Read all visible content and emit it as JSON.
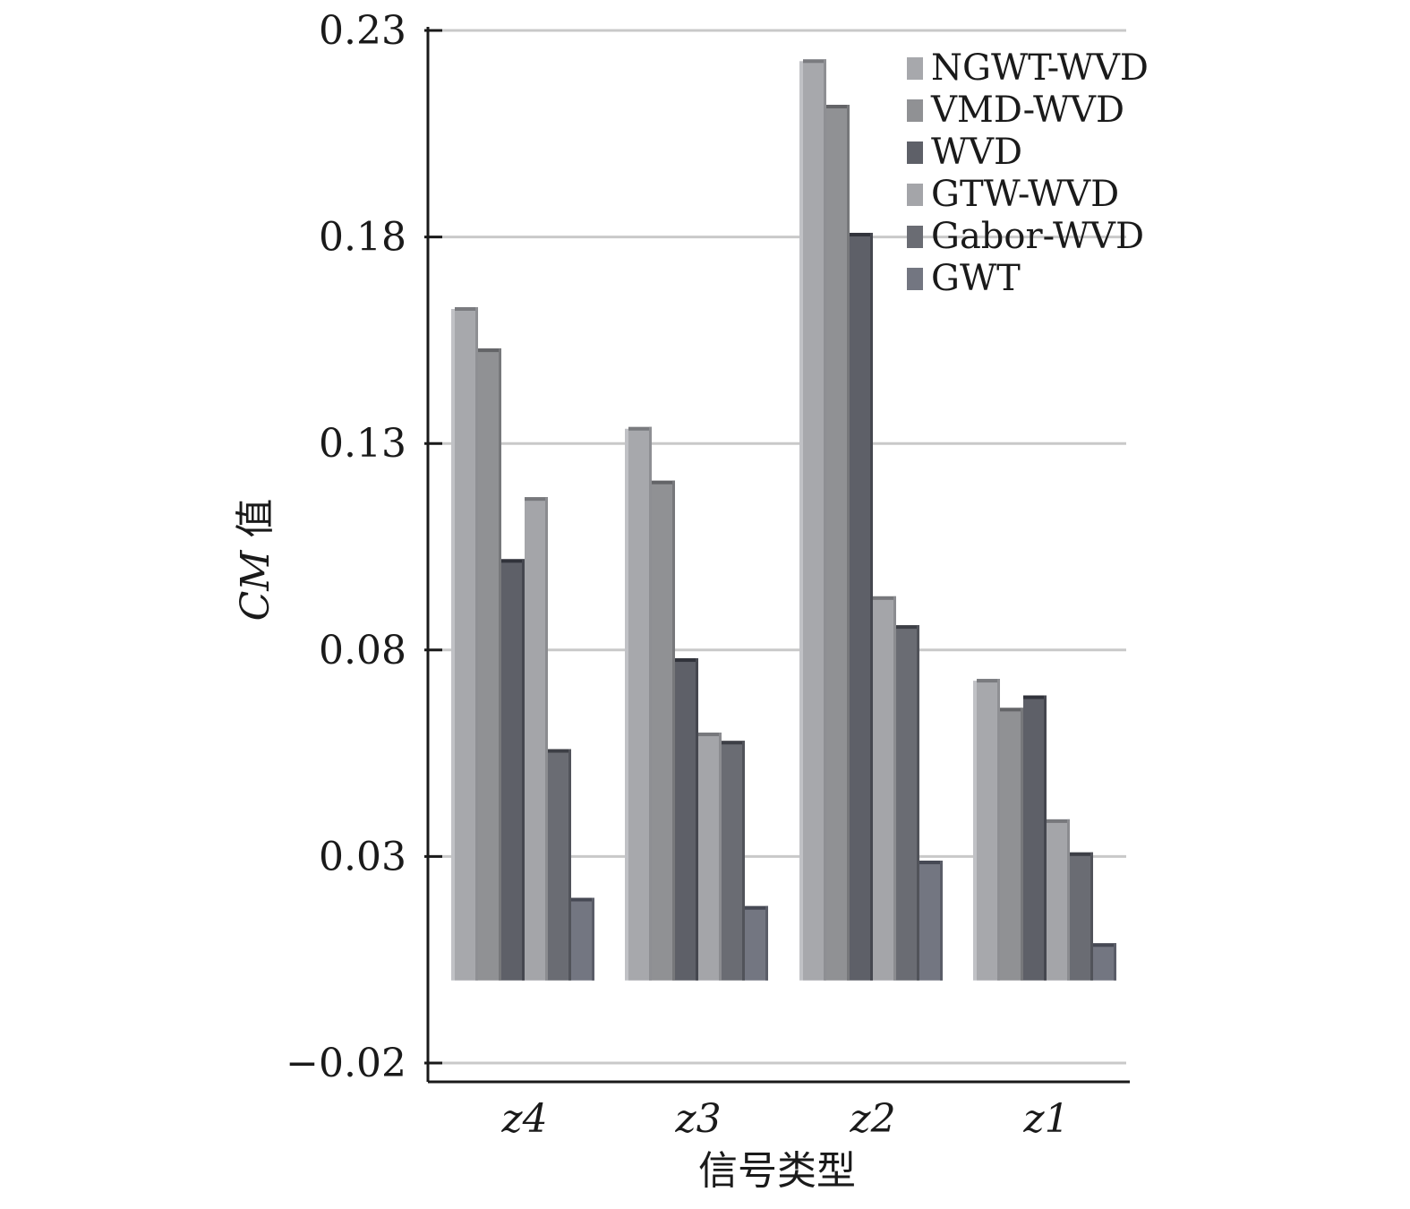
{
  "chart_data": {
    "type": "bar",
    "xlabel": "信号类型",
    "ylabel_prefix": "CM",
    "ylabel_suffix": " 值",
    "categories": [
      "z4",
      "z3",
      "z2",
      "z1"
    ],
    "yticks": [
      "0.23",
      "0.18",
      "0.13",
      "0.08",
      "0.03",
      "−0.02"
    ],
    "ylim": [
      -0.02,
      0.23
    ],
    "baseline": 0.0,
    "grid": true,
    "legend_position": "top-right",
    "series": [
      {
        "name": "NGWT-WVD",
        "color": "#a7a8ac",
        "values": [
          0.163,
          0.134,
          0.223,
          0.073
        ]
      },
      {
        "name": "VMD-WVD",
        "color": "#909194",
        "values": [
          0.153,
          0.121,
          0.212,
          0.066
        ]
      },
      {
        "name": "WVD",
        "color": "#5e6068",
        "values": [
          0.102,
          0.078,
          0.181,
          0.069
        ]
      },
      {
        "name": "GTW-WVD",
        "color": "#a4a5a9",
        "values": [
          0.117,
          0.06,
          0.093,
          0.039
        ]
      },
      {
        "name": "Gabor-WVD",
        "color": "#6a6c73",
        "values": [
          0.056,
          0.058,
          0.086,
          0.031
        ]
      },
      {
        "name": "GWT",
        "color": "#737681",
        "values": [
          0.02,
          0.018,
          0.029,
          0.009
        ]
      }
    ]
  }
}
